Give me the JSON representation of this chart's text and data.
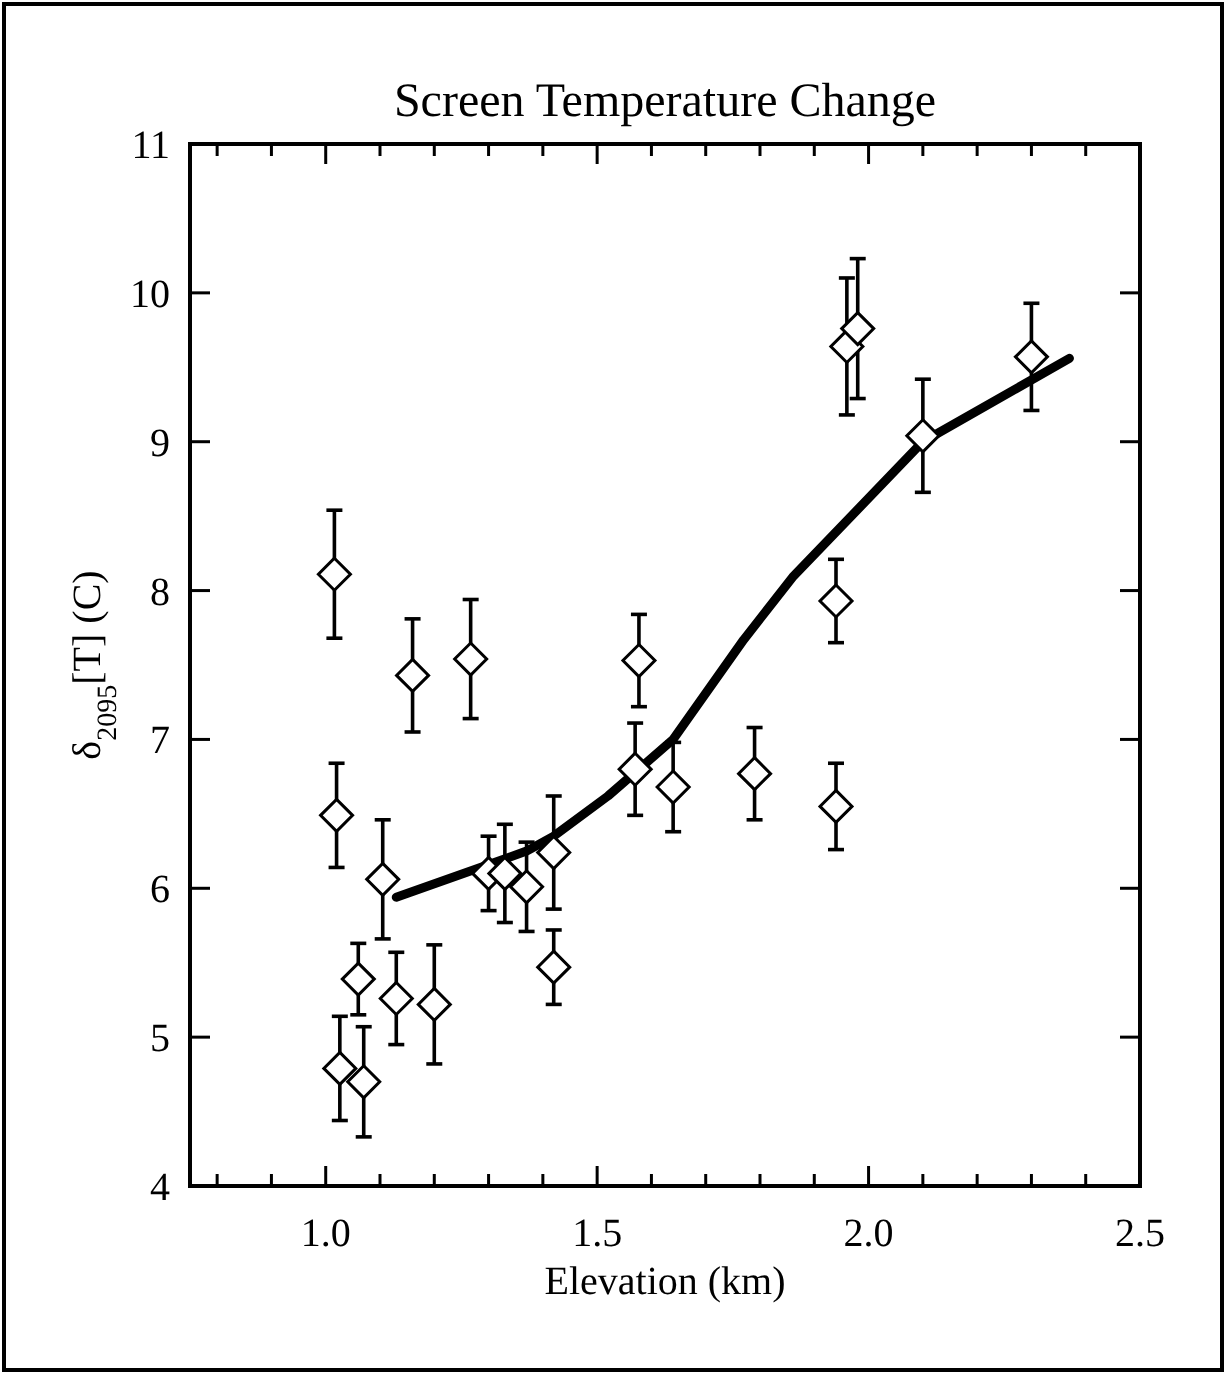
{
  "chart_data": {
    "type": "scatter",
    "title": "Screen Temperature Change",
    "xlabel": "Elevation (km)",
    "ylabel": "δ$_{2095}$[T] (C)",
    "xlim": [
      0.75,
      2.5
    ],
    "ylim": [
      4,
      11
    ],
    "xticks": [
      {
        "value": 0.8,
        "label": null
      },
      {
        "value": 0.9,
        "label": null
      },
      {
        "value": 1.0,
        "label": "1.0"
      },
      {
        "value": 1.1,
        "label": null
      },
      {
        "value": 1.2,
        "label": null
      },
      {
        "value": 1.3,
        "label": null
      },
      {
        "value": 1.4,
        "label": null
      },
      {
        "value": 1.5,
        "label": "1.5"
      },
      {
        "value": 1.6,
        "label": null
      },
      {
        "value": 1.7,
        "label": null
      },
      {
        "value": 1.8,
        "label": null
      },
      {
        "value": 1.9,
        "label": null
      },
      {
        "value": 2.0,
        "label": "2.0"
      },
      {
        "value": 2.1,
        "label": null
      },
      {
        "value": 2.2,
        "label": null
      },
      {
        "value": 2.3,
        "label": null
      },
      {
        "value": 2.4,
        "label": null
      },
      {
        "value": 2.5,
        "label": "2.5"
      }
    ],
    "yticks": [
      4,
      5,
      6,
      7,
      8,
      9,
      10,
      11
    ],
    "grid": false,
    "series": [
      {
        "color": "#000000",
        "marker": "diamond",
        "x": [
          1.02,
          1.105,
          1.06,
          1.13,
          1.2,
          1.026,
          1.07,
          1.16,
          1.267,
          1.577,
          1.57,
          1.64,
          1.3,
          1.33,
          1.37,
          1.42,
          1.42,
          1.016,
          1.96,
          1.98,
          2.3,
          2.1,
          1.94,
          1.79,
          1.94
        ],
        "values": [
          6.49,
          6.06,
          5.39,
          5.26,
          5.22,
          4.79,
          4.7,
          7.43,
          7.54,
          7.53,
          6.8,
          6.68,
          6.1,
          6.1,
          6.01,
          6.24,
          5.47,
          8.11,
          9.64,
          9.76,
          9.57,
          9.04,
          7.93,
          6.77,
          6.55
        ],
        "errors": [
          0.35,
          0.4,
          0.24,
          0.31,
          0.4,
          0.35,
          0.37,
          0.38,
          0.4,
          0.31,
          0.31,
          0.3,
          0.25,
          0.33,
          0.3,
          0.38,
          0.25,
          0.43,
          0.46,
          0.47,
          0.36,
          0.38,
          0.28,
          0.31,
          0.29
        ]
      },
      {
        "type": "line",
        "color": "#000000",
        "marker": "none",
        "line_style": "solid",
        "x": [
          1.13,
          1.37,
          1.42,
          1.52,
          1.64,
          1.77,
          1.86,
          2.1,
          2.37
        ],
        "values": [
          5.94,
          6.25,
          6.35,
          6.62,
          7.0,
          7.67,
          8.09,
          9.0,
          9.56
        ]
      }
    ]
  }
}
